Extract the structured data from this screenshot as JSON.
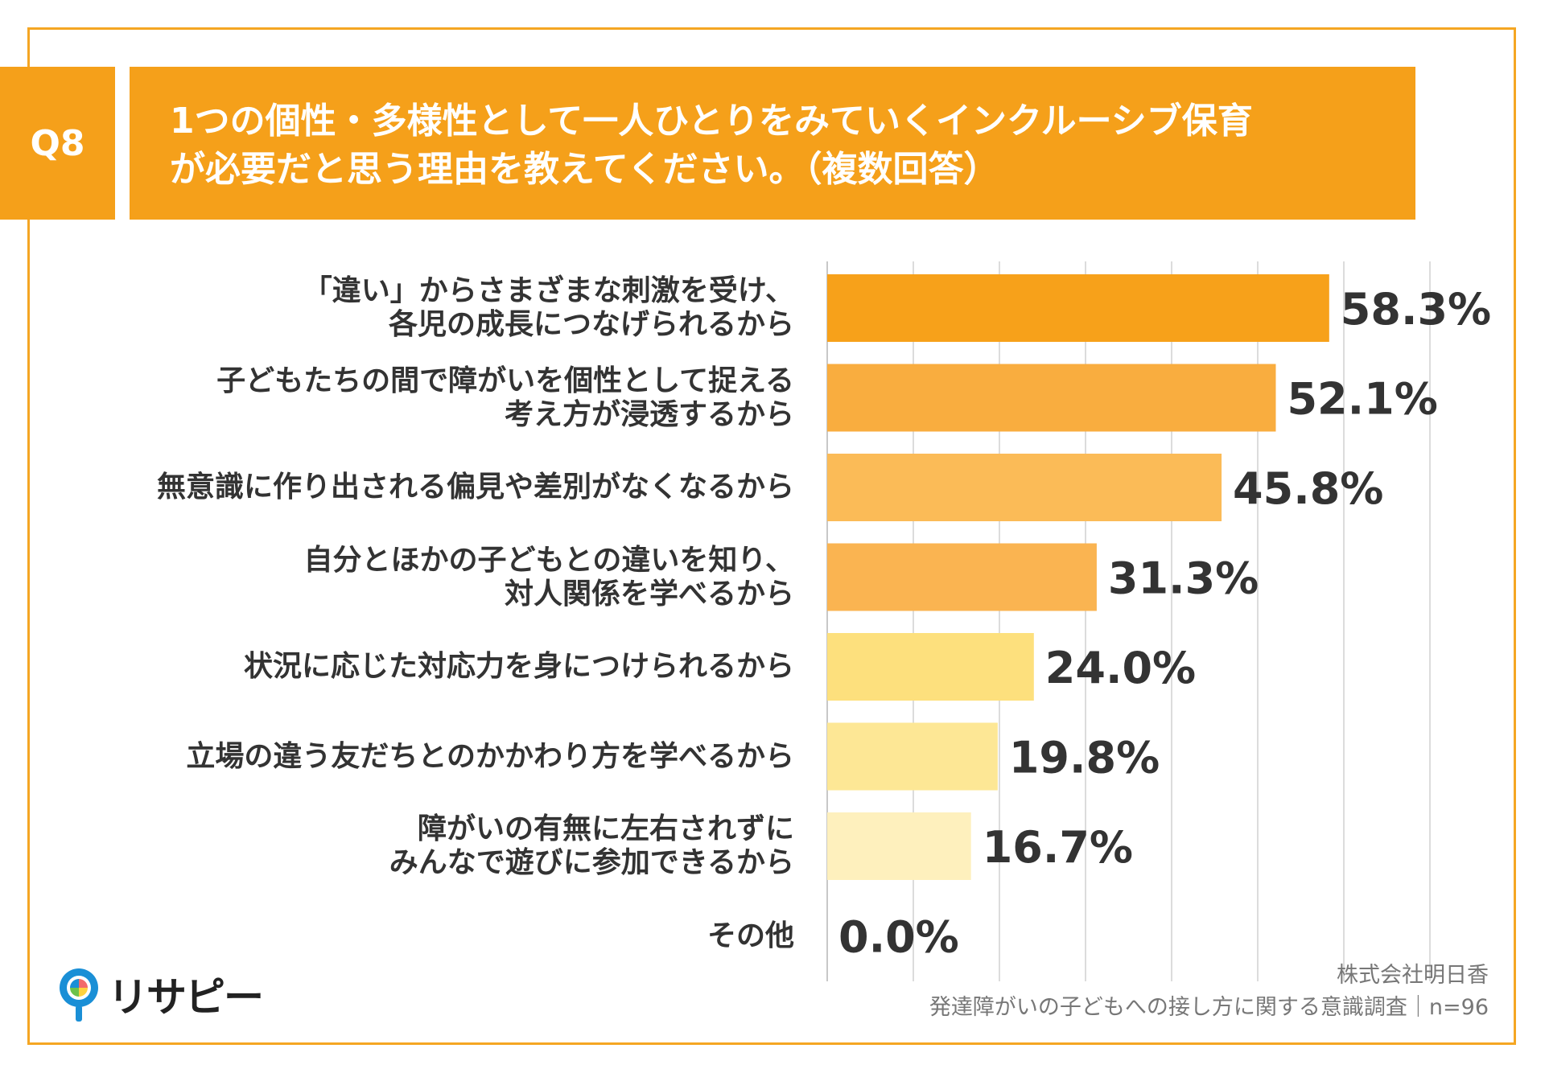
{
  "question": {
    "badge": "Q8",
    "title_line1": "1つの個性・多様性として一人ひとりをみていくインクルーシブ保育",
    "title_line2": "が必要だと思う理由を教えてください。（複数回答）"
  },
  "chart_data": {
    "type": "bar",
    "orientation": "horizontal",
    "categories": [
      [
        "「違い」からさまざまな刺激を受け、",
        "各児の成長につなげられるから"
      ],
      [
        "子どもたちの間で障がいを個性として捉える",
        "考え方が浸透するから"
      ],
      [
        "無意識に作り出される偏見や差別がなくなるから"
      ],
      [
        "自分とほかの子どもとの違いを知り、",
        "対人関係を学べるから"
      ],
      [
        "状況に応じた対応力を身につけられるから"
      ],
      [
        "立場の違う友だちとのかかわり方を学べるから"
      ],
      [
        "障がいの有無に左右されずに",
        "みんなで遊びに参加できるから"
      ],
      [
        "その他"
      ]
    ],
    "values": [
      58.3,
      52.1,
      45.8,
      31.3,
      24.0,
      19.8,
      16.7,
      0.0
    ],
    "value_labels": [
      "58.3%",
      "52.1%",
      "45.8%",
      "31.3%",
      "24.0%",
      "19.8%",
      "16.7%",
      "0.0%"
    ],
    "bar_colors": [
      "#f7a11a",
      "#f9ad3f",
      "#fbbb57",
      "#fab451",
      "#fde07d",
      "#fde795",
      "#fef0bd",
      "#fef0bd"
    ],
    "xlim": [
      0,
      70
    ],
    "grid": true,
    "unit": "%"
  },
  "brand": {
    "logo_text": "リサピー",
    "accent": "#f5a01a"
  },
  "source": {
    "company": "株式会社明日香",
    "survey": "発達障がいの子どもへの接し方に関する意識調査｜n=96"
  }
}
